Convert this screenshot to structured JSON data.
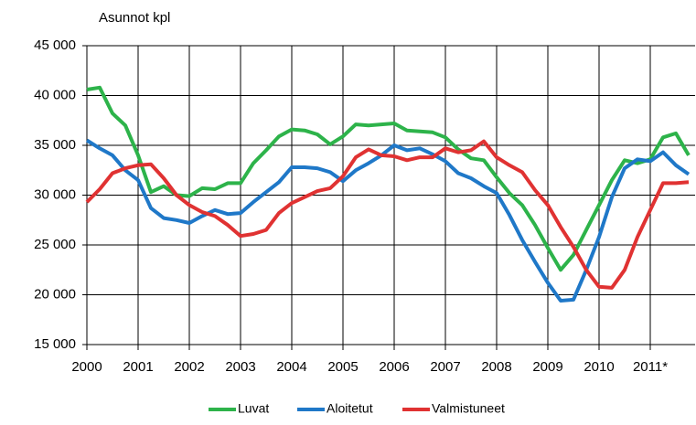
{
  "chart_data": {
    "type": "line",
    "y_label": "Asunnot kpl",
    "x": [
      2000,
      2000.25,
      2000.5,
      2000.75,
      2001,
      2001.25,
      2001.5,
      2001.75,
      2002,
      2002.25,
      2002.5,
      2002.75,
      2003,
      2003.25,
      2003.5,
      2003.75,
      2004,
      2004.25,
      2004.5,
      2004.75,
      2005,
      2005.25,
      2005.5,
      2005.75,
      2006,
      2006.25,
      2006.5,
      2006.75,
      2007,
      2007.25,
      2007.5,
      2007.75,
      2008,
      2008.25,
      2008.5,
      2008.75,
      2009,
      2009.25,
      2009.5,
      2009.75,
      2010,
      2010.25,
      2010.5,
      2010.75,
      2011,
      2011.25,
      2011.5,
      2011.75
    ],
    "series": [
      {
        "name": "Luvat",
        "color": "#2db34a",
        "values": [
          40600,
          40800,
          38200,
          37000,
          34000,
          30300,
          30900,
          30000,
          29900,
          30700,
          30600,
          31200,
          31200,
          33200,
          34500,
          35900,
          36600,
          36500,
          36100,
          35100,
          35900,
          37100,
          37000,
          37100,
          37200,
          36500,
          36400,
          36300,
          35800,
          34600,
          33700,
          33500,
          31800,
          30200,
          29000,
          27000,
          24700,
          22500,
          24000,
          26500,
          29000,
          31500,
          33500,
          33200,
          33600,
          35800,
          36200,
          34000
        ]
      },
      {
        "name": "Aloitetut",
        "color": "#1f78c8",
        "values": [
          35500,
          34700,
          34000,
          32500,
          31500,
          28700,
          27700,
          27500,
          27200,
          27900,
          28500,
          28100,
          28200,
          29300,
          30300,
          31300,
          32800,
          32800,
          32700,
          32300,
          31400,
          32500,
          33200,
          34000,
          35000,
          34500,
          34700,
          34100,
          33400,
          32200,
          31700,
          30900,
          30200,
          28000,
          25500,
          23300,
          21200,
          19400,
          19500,
          22500,
          25800,
          29800,
          32700,
          33600,
          33400,
          34300,
          33000,
          32100
        ]
      },
      {
        "name": "Valmistuneet",
        "color": "#e03232",
        "values": [
          29300,
          30600,
          32200,
          32700,
          33000,
          33100,
          31700,
          30000,
          29000,
          28300,
          27900,
          27000,
          25900,
          26100,
          26500,
          28200,
          29200,
          29800,
          30400,
          30700,
          31900,
          33800,
          34600,
          34000,
          33900,
          33500,
          33800,
          33800,
          34700,
          34300,
          34500,
          35400,
          33800,
          33000,
          32300,
          30500,
          29000,
          26800,
          24800,
          22500,
          20800,
          20700,
          22500,
          25800,
          28500,
          31200,
          31200,
          31300
        ]
      }
    ],
    "xlim": [
      2000,
      2011.875
    ],
    "xticks": [
      2000,
      2001,
      2002,
      2003,
      2004,
      2005,
      2006,
      2007,
      2008,
      2009,
      2010,
      {
        "value": 2011,
        "label": "2011*"
      }
    ],
    "ylim": [
      15000,
      45000
    ],
    "yticks": [
      {
        "value": 15000,
        "label": "15 000"
      },
      {
        "value": 20000,
        "label": "20 000"
      },
      {
        "value": 25000,
        "label": "25 000"
      },
      {
        "value": 30000,
        "label": "30 000"
      },
      {
        "value": 35000,
        "label": "35 000"
      },
      {
        "value": 40000,
        "label": "40 000"
      },
      {
        "value": 45000,
        "label": "45 000"
      }
    ],
    "grid": true
  }
}
